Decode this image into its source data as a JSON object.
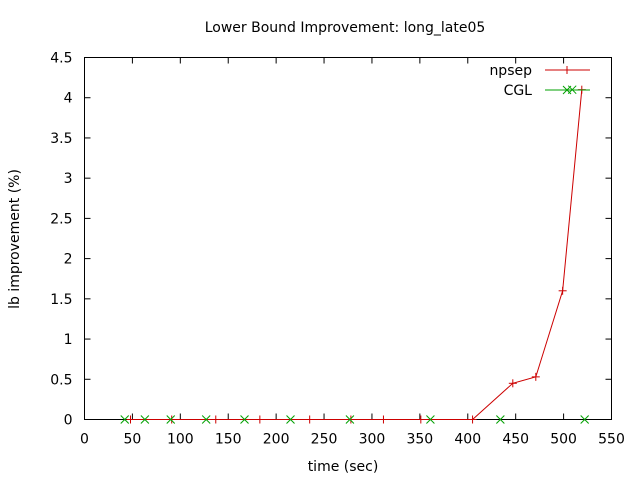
{
  "chart_data": {
    "type": "line",
    "title": "Lower Bound Improvement: long_late05",
    "xlabel": "time (sec)",
    "ylabel": "lb improvement (%)",
    "xlim": [
      0,
      550
    ],
    "ylim": [
      0,
      4.5
    ],
    "x_ticks": [
      0,
      50,
      100,
      150,
      200,
      250,
      300,
      350,
      400,
      450,
      500,
      550
    ],
    "y_ticks": [
      0,
      0.5,
      1,
      1.5,
      2,
      2.5,
      3,
      3.5,
      4,
      4.5
    ],
    "x_tick_labels": [
      "0",
      "50",
      "100",
      "150",
      "200",
      "250",
      "300",
      "350",
      "400",
      "450",
      "500",
      "550"
    ],
    "y_tick_labels": [
      "0",
      "0.5",
      "1",
      "1.5",
      "2",
      "2.5",
      "3",
      "3.5",
      "4",
      "4.5"
    ],
    "grid": false,
    "legend_position": "top-right",
    "series": [
      {
        "name": "npsep",
        "color": "#cc0000",
        "marker": "plus",
        "line": true,
        "x": [
          48,
          91,
          137,
          183,
          235,
          278,
          312,
          351,
          405,
          447,
          471,
          499,
          519
        ],
        "y": [
          0,
          0,
          0,
          0,
          0,
          0,
          0,
          0,
          0,
          0.45,
          0.53,
          1.6,
          4.1
        ]
      },
      {
        "name": "CGL",
        "color": "#00a000",
        "marker": "cross",
        "line": false,
        "x": [
          42,
          63,
          90,
          127,
          167,
          215,
          277,
          361,
          434,
          509,
          522
        ],
        "y": [
          0,
          0,
          0,
          0,
          0,
          0,
          0,
          0,
          0,
          4.1,
          0
        ]
      }
    ]
  }
}
